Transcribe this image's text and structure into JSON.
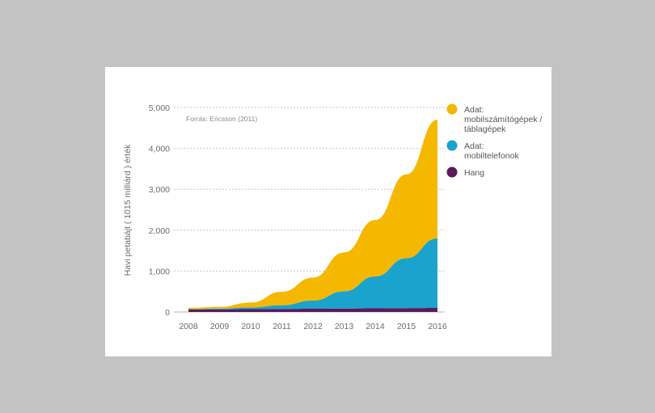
{
  "chart_data": {
    "type": "area",
    "stacked": true,
    "ylabel": "Havi petabájt ( 1015 milliárd ) érték",
    "source_note": "Forrás: Ericsson (2011)",
    "x": [
      "2008",
      "2009",
      "2010",
      "2011",
      "2012",
      "2013",
      "2014",
      "2015",
      "2016"
    ],
    "ylim": [
      0,
      5000
    ],
    "yticks": [
      0,
      1000,
      2000,
      3000,
      4000,
      5000
    ],
    "ytick_labels": [
      "0",
      "1,000",
      "2,000",
      "3,000",
      "4,000",
      "5,000"
    ],
    "grid": "horizontal-dashed",
    "legend_position": "right",
    "series": [
      {
        "name": "Hang",
        "color": "#5a1a5e",
        "values": [
          60,
          65,
          70,
          75,
          80,
          85,
          90,
          95,
          100
        ]
      },
      {
        "name": "Adat: mobiltelefonok",
        "color": "#1aa3cc",
        "values": [
          10,
          20,
          40,
          90,
          200,
          420,
          780,
          1220,
          1700
        ]
      },
      {
        "name": "Adat: mobilszámítógépek / táblagépek",
        "color": "#f5b800",
        "values": [
          30,
          40,
          120,
          330,
          560,
          950,
          1380,
          2050,
          2900
        ]
      }
    ],
    "legend": [
      {
        "lines": [
          "Adat:",
          "mobilszámítógépek /",
          "táblagépek"
        ],
        "color": "#f5b800"
      },
      {
        "lines": [
          "Adat:",
          "mobiltelefonok"
        ],
        "color": "#1aa3cc"
      },
      {
        "lines": [
          "Hang"
        ],
        "color": "#5a1a5e"
      }
    ]
  }
}
